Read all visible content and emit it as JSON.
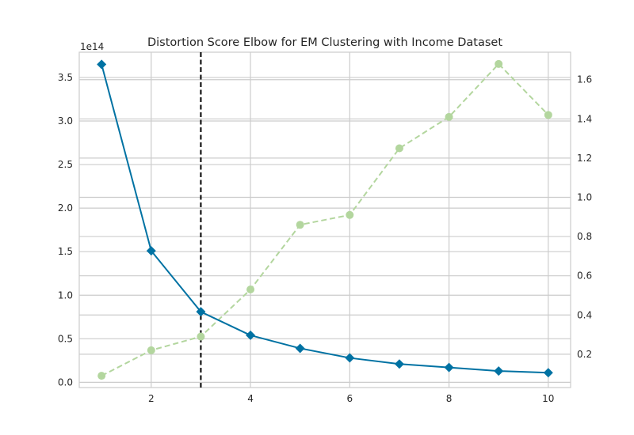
{
  "chart_data": {
    "type": "line",
    "title": "Distortion Score Elbow for EM Clustering with Income Dataset",
    "xlabel": "",
    "ylabel": "",
    "y_offset_label": "1e14",
    "x": [
      1,
      2,
      3,
      4,
      5,
      6,
      7,
      8,
      9,
      10
    ],
    "xlim": [
      0.55,
      10.45
    ],
    "x_ticks": [
      2,
      4,
      6,
      8,
      10
    ],
    "x_tick_labels": [
      "2",
      "4",
      "6",
      "8",
      "10"
    ],
    "y_left": {
      "lim": [
        -0.06,
        3.79
      ],
      "ticks": [
        0.0,
        0.5,
        1.0,
        1.5,
        2.0,
        2.5,
        3.0,
        3.5
      ],
      "tick_labels": [
        "0.0",
        "0.5",
        "1.0",
        "1.5",
        "2.0",
        "2.5",
        "3.0",
        "3.5"
      ]
    },
    "y_right": {
      "lim": [
        0.03,
        1.74
      ],
      "ticks": [
        0.2,
        0.4,
        0.6,
        0.8,
        1.0,
        1.2,
        1.4,
        1.6
      ],
      "tick_labels": [
        "0.2",
        "0.4",
        "0.6",
        "0.8",
        "1.0",
        "1.2",
        "1.4",
        "1.6"
      ]
    },
    "series": [
      {
        "axis": "left",
        "color": "#0072a3",
        "style": "solid",
        "marker": "diamond",
        "values": [
          3.65,
          1.51,
          0.81,
          0.54,
          0.39,
          0.28,
          0.21,
          0.17,
          0.13,
          0.11
        ]
      },
      {
        "axis": "right",
        "color": "#b3d69e",
        "style": "dashed",
        "marker": "circle",
        "values": [
          0.09,
          0.22,
          0.29,
          0.53,
          0.86,
          0.91,
          1.25,
          1.41,
          1.68,
          1.42
        ]
      }
    ],
    "elbow": {
      "x": 3,
      "color": "#000000",
      "style": "dashed"
    },
    "grid": true,
    "legend": "none"
  }
}
